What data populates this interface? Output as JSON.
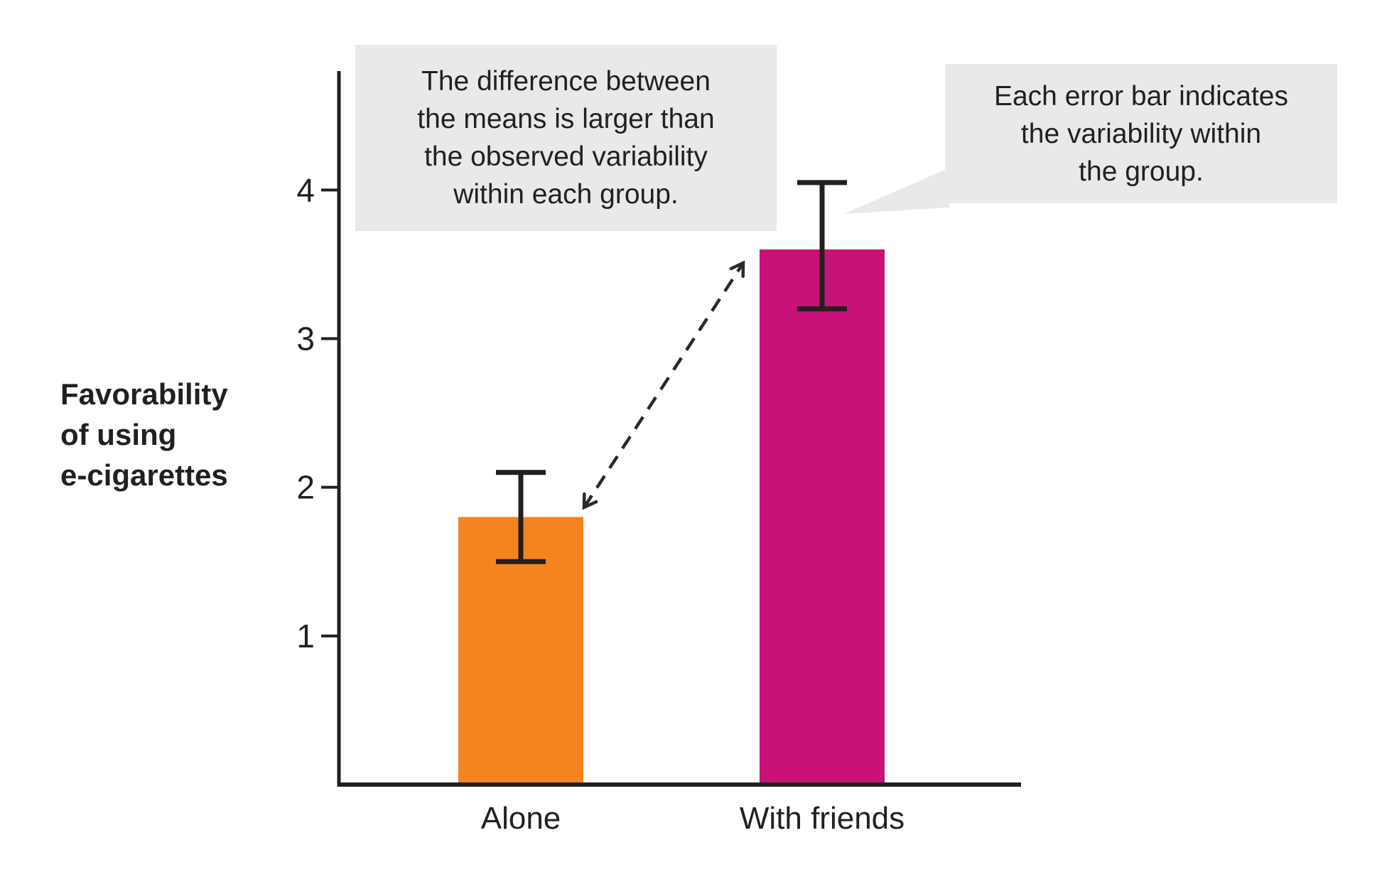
{
  "chart_data": {
    "type": "bar",
    "categories": [
      "Alone",
      "With friends"
    ],
    "bars": [
      {
        "label": "Alone",
        "mean": 1.8,
        "error_upper": 2.1,
        "error_lower": 1.5,
        "color": "#F5831F"
      },
      {
        "label": "With friends",
        "mean": 3.6,
        "error_upper": 4.05,
        "error_lower": 3.2,
        "color": "#C81277"
      }
    ],
    "ylabel": "Favorability of using e-cigarettes",
    "ylabel_lines": [
      "Favorability",
      "of using",
      "e-cigarettes"
    ],
    "y_ticks": [
      4,
      3,
      2,
      1
    ],
    "ylim": [
      0,
      4.8
    ],
    "grid": false,
    "legend": "none"
  },
  "annotations": {
    "difference_note": {
      "text": "The difference between the means is larger than the observed variability within each group.",
      "lines": [
        "The difference between",
        "the means is larger than",
        "the observed variability",
        "within each group."
      ],
      "background": "#E9E9E9"
    },
    "error_bar_note": {
      "text": "Each error bar indicates the variability within the group.",
      "lines": [
        "Each error bar indicates",
        "the variability within",
        "the group."
      ],
      "background": "#E9E9E9"
    },
    "difference_arrow": {
      "style": "dashed",
      "double_headed": true,
      "color": "#2A2A2A"
    }
  },
  "colors": {
    "axis": "#231F20",
    "text": "#231F20",
    "note_background": "#E9E9E9",
    "background": "#FFFFFF"
  }
}
